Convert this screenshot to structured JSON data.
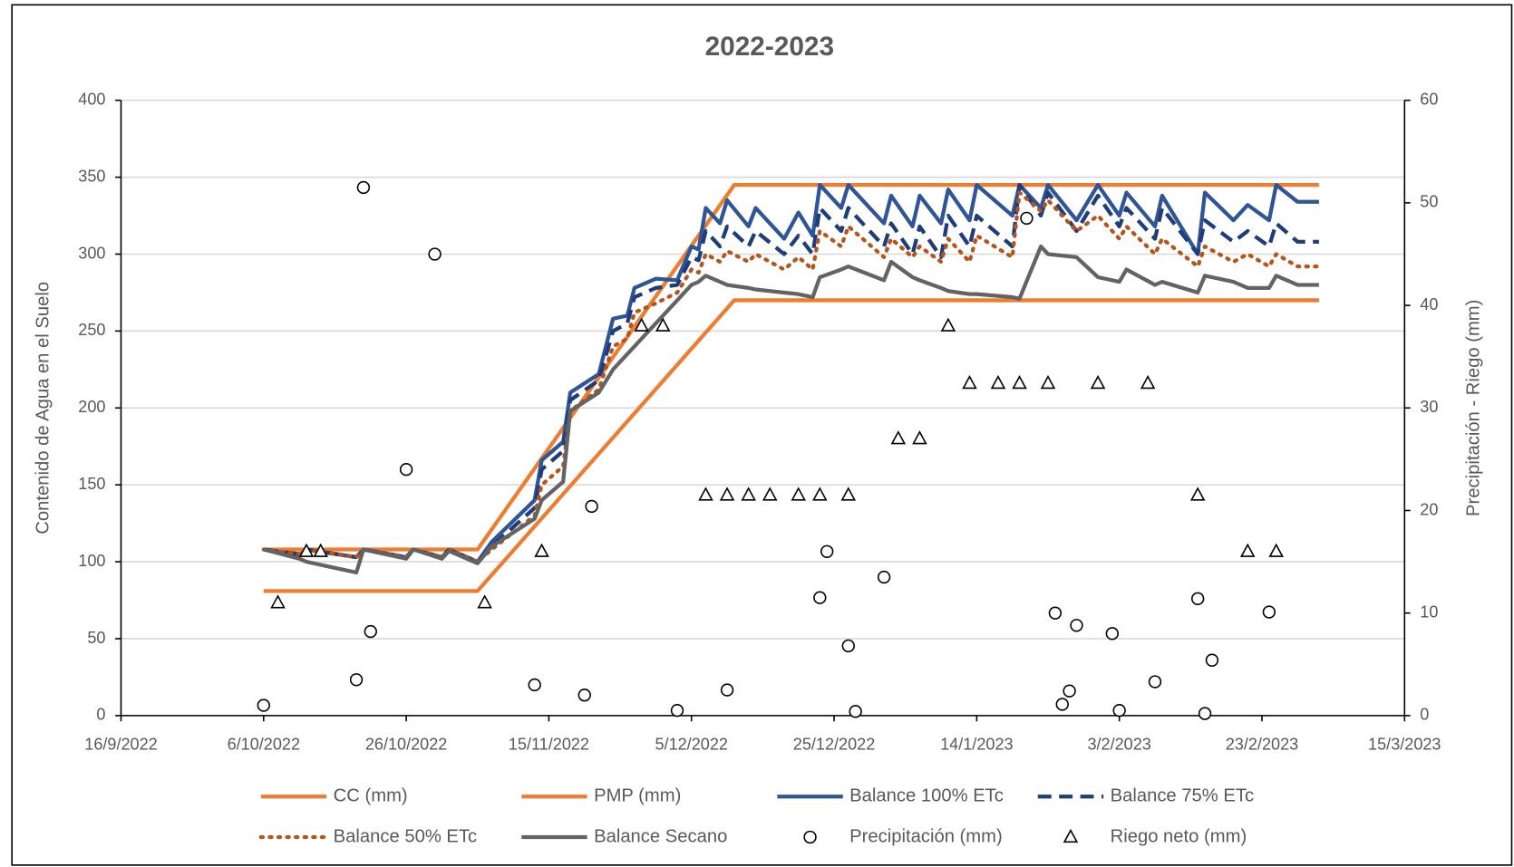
{
  "chart_data": {
    "type": "line",
    "title": "2022-2023",
    "y_label": "Contenido de Agua en el Suelo",
    "y2_label": "Precipitación - Riego (mm)",
    "xlim": [
      "2022-09-16",
      "2023-03-15"
    ],
    "xticks": [
      {
        "value": "2022-09-16",
        "label": "16/9/2022"
      },
      {
        "value": "2022-10-06",
        "label": "6/10/2022"
      },
      {
        "value": "2022-10-26",
        "label": "26/10/2022"
      },
      {
        "value": "2022-11-15",
        "label": "15/11/2022"
      },
      {
        "value": "2022-12-05",
        "label": "5/12/2022"
      },
      {
        "value": "2022-12-25",
        "label": "25/12/2022"
      },
      {
        "value": "2023-01-14",
        "label": "14/1/2023"
      },
      {
        "value": "2023-02-03",
        "label": "3/2/2023"
      },
      {
        "value": "2023-02-23",
        "label": "23/2/2023"
      },
      {
        "value": "2023-03-15",
        "label": "15/3/2023"
      }
    ],
    "ylim": [
      0,
      400
    ],
    "yticks": [
      0,
      50,
      100,
      150,
      200,
      250,
      300,
      350,
      400
    ],
    "y2lim": [
      0,
      60
    ],
    "y2ticks": [
      0,
      10,
      20,
      30,
      40,
      50,
      60
    ],
    "grid": true,
    "series": [
      {
        "name": "CC (mm)",
        "type": "line",
        "style": "solid",
        "color": "#ED7D31",
        "x": [
          "2022-10-06",
          "2022-11-05",
          "2022-12-11",
          "2023-03-03"
        ],
        "values": [
          108,
          108,
          345,
          345
        ]
      },
      {
        "name": "PMP (mm)",
        "type": "line",
        "style": "solid",
        "color": "#ED7D31",
        "x": [
          "2022-10-06",
          "2022-11-05",
          "2022-12-11",
          "2023-03-03"
        ],
        "values": [
          81,
          81,
          270,
          270
        ]
      },
      {
        "name": "Balance 100% ETc",
        "type": "line",
        "style": "solid",
        "color": "#2F5597",
        "x": [
          "2022-10-06",
          "2022-10-11",
          "2022-10-12",
          "2022-10-19",
          "2022-10-20",
          "2022-10-26",
          "2022-10-27",
          "2022-10-31",
          "2022-11-01",
          "2022-11-05",
          "2022-11-07",
          "2022-11-13",
          "2022-11-14",
          "2022-11-17",
          "2022-11-18",
          "2022-11-22",
          "2022-11-24",
          "2022-11-26",
          "2022-11-27",
          "2022-11-30",
          "2022-12-03",
          "2022-12-05",
          "2022-12-06",
          "2022-12-07",
          "2022-12-09",
          "2022-12-10",
          "2022-12-13",
          "2022-12-14",
          "2022-12-18",
          "2022-12-20",
          "2022-12-22",
          "2022-12-23",
          "2022-12-26",
          "2022-12-27",
          "2023-01-01",
          "2023-01-02",
          "2023-01-05",
          "2023-01-06",
          "2023-01-09",
          "2023-01-10",
          "2023-01-13",
          "2023-01-14",
          "2023-01-19",
          "2023-01-20",
          "2023-01-23",
          "2023-01-24",
          "2023-01-28",
          "2023-01-31",
          "2023-02-03",
          "2023-02-04",
          "2023-02-08",
          "2023-02-09",
          "2023-02-14",
          "2023-02-15",
          "2023-02-19",
          "2023-02-21",
          "2023-02-24",
          "2023-02-25",
          "2023-02-28",
          "2023-03-03"
        ],
        "values": [
          108,
          104,
          108,
          103,
          108,
          103,
          108,
          103,
          108,
          100,
          113,
          140,
          166,
          178,
          210,
          222,
          258,
          260,
          278,
          284,
          283,
          305,
          303,
          330,
          320,
          335,
          318,
          330,
          310,
          327,
          312,
          345,
          330,
          345,
          320,
          338,
          318,
          338,
          320,
          342,
          322,
          345,
          325,
          345,
          330,
          345,
          322,
          345,
          325,
          340,
          318,
          338,
          300,
          340,
          322,
          332,
          322,
          345,
          334,
          334
        ]
      },
      {
        "name": "Balance 75% ETc",
        "type": "line",
        "style": "dash",
        "color": "#1F3D7A",
        "x": [
          "2022-10-06",
          "2022-10-11",
          "2022-10-12",
          "2022-10-19",
          "2022-10-20",
          "2022-10-26",
          "2022-10-27",
          "2022-10-31",
          "2022-11-01",
          "2022-11-05",
          "2022-11-07",
          "2022-11-13",
          "2022-11-14",
          "2022-11-17",
          "2022-11-18",
          "2022-11-22",
          "2022-11-24",
          "2022-11-26",
          "2022-11-27",
          "2022-11-30",
          "2022-12-03",
          "2022-12-05",
          "2022-12-06",
          "2022-12-07",
          "2022-12-09",
          "2022-12-10",
          "2022-12-13",
          "2022-12-14",
          "2022-12-18",
          "2022-12-20",
          "2022-12-22",
          "2022-12-23",
          "2022-12-26",
          "2022-12-27",
          "2023-01-01",
          "2023-01-02",
          "2023-01-05",
          "2023-01-06",
          "2023-01-09",
          "2023-01-10",
          "2023-01-13",
          "2023-01-14",
          "2023-01-19",
          "2023-01-20",
          "2023-01-23",
          "2023-01-24",
          "2023-01-28",
          "2023-01-31",
          "2023-02-03",
          "2023-02-04",
          "2023-02-08",
          "2023-02-09",
          "2023-02-14",
          "2023-02-15",
          "2023-02-19",
          "2023-02-21",
          "2023-02-24",
          "2023-02-25",
          "2023-02-28",
          "2023-03-03"
        ],
        "values": [
          108,
          105,
          108,
          103,
          108,
          103,
          108,
          103,
          108,
          100,
          110,
          135,
          160,
          172,
          205,
          218,
          250,
          255,
          272,
          278,
          280,
          298,
          296,
          315,
          305,
          318,
          305,
          315,
          300,
          312,
          300,
          330,
          315,
          330,
          305,
          320,
          300,
          318,
          298,
          325,
          305,
          325,
          305,
          345,
          325,
          340,
          315,
          338,
          318,
          330,
          310,
          330,
          300,
          322,
          308,
          315,
          305,
          320,
          308,
          308
        ]
      },
      {
        "name": "Balance 50% ETc",
        "type": "line",
        "style": "dot",
        "color": "#B5541B",
        "x": [
          "2022-10-06",
          "2022-10-11",
          "2022-10-12",
          "2022-10-19",
          "2022-10-20",
          "2022-10-26",
          "2022-10-27",
          "2022-10-31",
          "2022-11-01",
          "2022-11-05",
          "2022-11-07",
          "2022-11-13",
          "2022-11-14",
          "2022-11-17",
          "2022-11-18",
          "2022-11-22",
          "2022-11-24",
          "2022-11-26",
          "2022-11-27",
          "2022-11-30",
          "2022-12-03",
          "2022-12-05",
          "2022-12-06",
          "2022-12-07",
          "2022-12-09",
          "2022-12-10",
          "2022-12-13",
          "2022-12-14",
          "2022-12-18",
          "2022-12-20",
          "2022-12-22",
          "2022-12-23",
          "2022-12-26",
          "2022-12-27",
          "2023-01-01",
          "2023-01-02",
          "2023-01-05",
          "2023-01-06",
          "2023-01-09",
          "2023-01-10",
          "2023-01-13",
          "2023-01-14",
          "2023-01-19",
          "2023-01-20",
          "2023-01-23",
          "2023-01-24",
          "2023-01-28",
          "2023-01-31",
          "2023-02-03",
          "2023-02-04",
          "2023-02-08",
          "2023-02-09",
          "2023-02-14",
          "2023-02-15",
          "2023-02-19",
          "2023-02-21",
          "2023-02-24",
          "2023-02-25",
          "2023-02-28",
          "2023-03-03"
        ],
        "values": [
          108,
          105,
          108,
          103,
          108,
          103,
          108,
          103,
          108,
          100,
          108,
          130,
          150,
          162,
          198,
          212,
          240,
          245,
          262,
          268,
          275,
          290,
          288,
          300,
          295,
          302,
          295,
          300,
          290,
          298,
          290,
          315,
          305,
          318,
          298,
          310,
          298,
          305,
          295,
          310,
          295,
          312,
          298,
          340,
          328,
          335,
          315,
          325,
          310,
          318,
          300,
          310,
          292,
          305,
          295,
          300,
          292,
          300,
          292,
          292
        ]
      },
      {
        "name": "Balance Secano",
        "type": "line",
        "style": "solid",
        "color": "#636363",
        "x": [
          "2022-10-06",
          "2022-10-11",
          "2022-10-12",
          "2022-10-19",
          "2022-10-20",
          "2022-10-26",
          "2022-10-27",
          "2022-10-31",
          "2022-11-01",
          "2022-11-05",
          "2022-11-07",
          "2022-11-13",
          "2022-11-14",
          "2022-11-17",
          "2022-11-18",
          "2022-11-22",
          "2022-11-24",
          "2022-11-26",
          "2022-11-27",
          "2022-11-30",
          "2022-12-03",
          "2022-12-05",
          "2022-12-06",
          "2022-12-07",
          "2022-12-09",
          "2022-12-10",
          "2022-12-13",
          "2022-12-14",
          "2022-12-18",
          "2022-12-20",
          "2022-12-22",
          "2022-12-23",
          "2022-12-26",
          "2022-12-27",
          "2023-01-01",
          "2023-01-02",
          "2023-01-05",
          "2023-01-06",
          "2023-01-09",
          "2023-01-10",
          "2023-01-13",
          "2023-01-14",
          "2023-01-19",
          "2023-01-20",
          "2023-01-23",
          "2023-01-24",
          "2023-01-28",
          "2023-01-31",
          "2023-02-03",
          "2023-02-04",
          "2023-02-08",
          "2023-02-09",
          "2023-02-14",
          "2023-02-15",
          "2023-02-19",
          "2023-02-21",
          "2023-02-24",
          "2023-02-25",
          "2023-02-28",
          "2023-03-03"
        ],
        "values": [
          108,
          102,
          100,
          93,
          108,
          102,
          108,
          102,
          107,
          99,
          110,
          128,
          140,
          152,
          198,
          210,
          225,
          235,
          240,
          255,
          270,
          280,
          282,
          286,
          282,
          280,
          278,
          277,
          275,
          274,
          272,
          285,
          290,
          292,
          283,
          295,
          285,
          283,
          278,
          276,
          274,
          274,
          272,
          271,
          305,
          300,
          298,
          285,
          282,
          290,
          280,
          282,
          275,
          286,
          282,
          278,
          278,
          286,
          280,
          280
        ]
      },
      {
        "name": "Precipitación (mm)",
        "type": "scatter",
        "marker": "circle",
        "axis": "y2",
        "color": "#000000",
        "x": [
          "2022-10-06",
          "2022-10-19",
          "2022-10-20",
          "2022-10-21",
          "2022-10-26",
          "2022-10-30",
          "2022-11-13",
          "2022-11-20",
          "2022-11-21",
          "2022-12-03",
          "2022-12-10",
          "2022-12-23",
          "2022-12-24",
          "2022-12-27",
          "2022-12-28",
          "2023-01-01",
          "2023-01-21",
          "2023-01-25",
          "2023-01-26",
          "2023-01-27",
          "2023-01-28",
          "2023-02-02",
          "2023-02-03",
          "2023-02-08",
          "2023-02-14",
          "2023-02-15",
          "2023-02-16",
          "2023-02-24"
        ],
        "values": [
          1.0,
          3.5,
          51.5,
          8.2,
          24.0,
          45.0,
          3.0,
          2.0,
          20.4,
          0.5,
          2.5,
          11.5,
          16.0,
          6.8,
          0.4,
          13.5,
          48.5,
          10.0,
          1.1,
          2.4,
          8.8,
          8.0,
          0.5,
          3.3,
          11.4,
          0.2,
          5.4,
          10.1
        ]
      },
      {
        "name": "Riego neto (mm)",
        "type": "scatter",
        "marker": "triangle",
        "axis": "y2",
        "color": "#000000",
        "x": [
          "2022-10-08",
          "2022-10-12",
          "2022-10-14",
          "2022-11-06",
          "2022-11-14",
          "2022-11-28",
          "2022-12-01",
          "2022-12-07",
          "2022-12-10",
          "2022-12-13",
          "2022-12-16",
          "2022-12-20",
          "2022-12-23",
          "2022-12-27",
          "2023-01-03",
          "2023-01-06",
          "2023-01-10",
          "2023-01-13",
          "2023-01-17",
          "2023-01-20",
          "2023-01-24",
          "2023-01-31",
          "2023-02-07",
          "2023-02-14",
          "2023-02-21",
          "2023-02-25"
        ],
        "values": [
          11,
          16,
          16,
          11,
          16,
          38,
          38,
          21.5,
          21.5,
          21.5,
          21.5,
          21.5,
          21.5,
          21.5,
          27,
          27,
          38,
          32.4,
          32.4,
          32.4,
          32.4,
          32.4,
          32.4,
          21.5,
          16,
          16
        ]
      }
    ]
  }
}
